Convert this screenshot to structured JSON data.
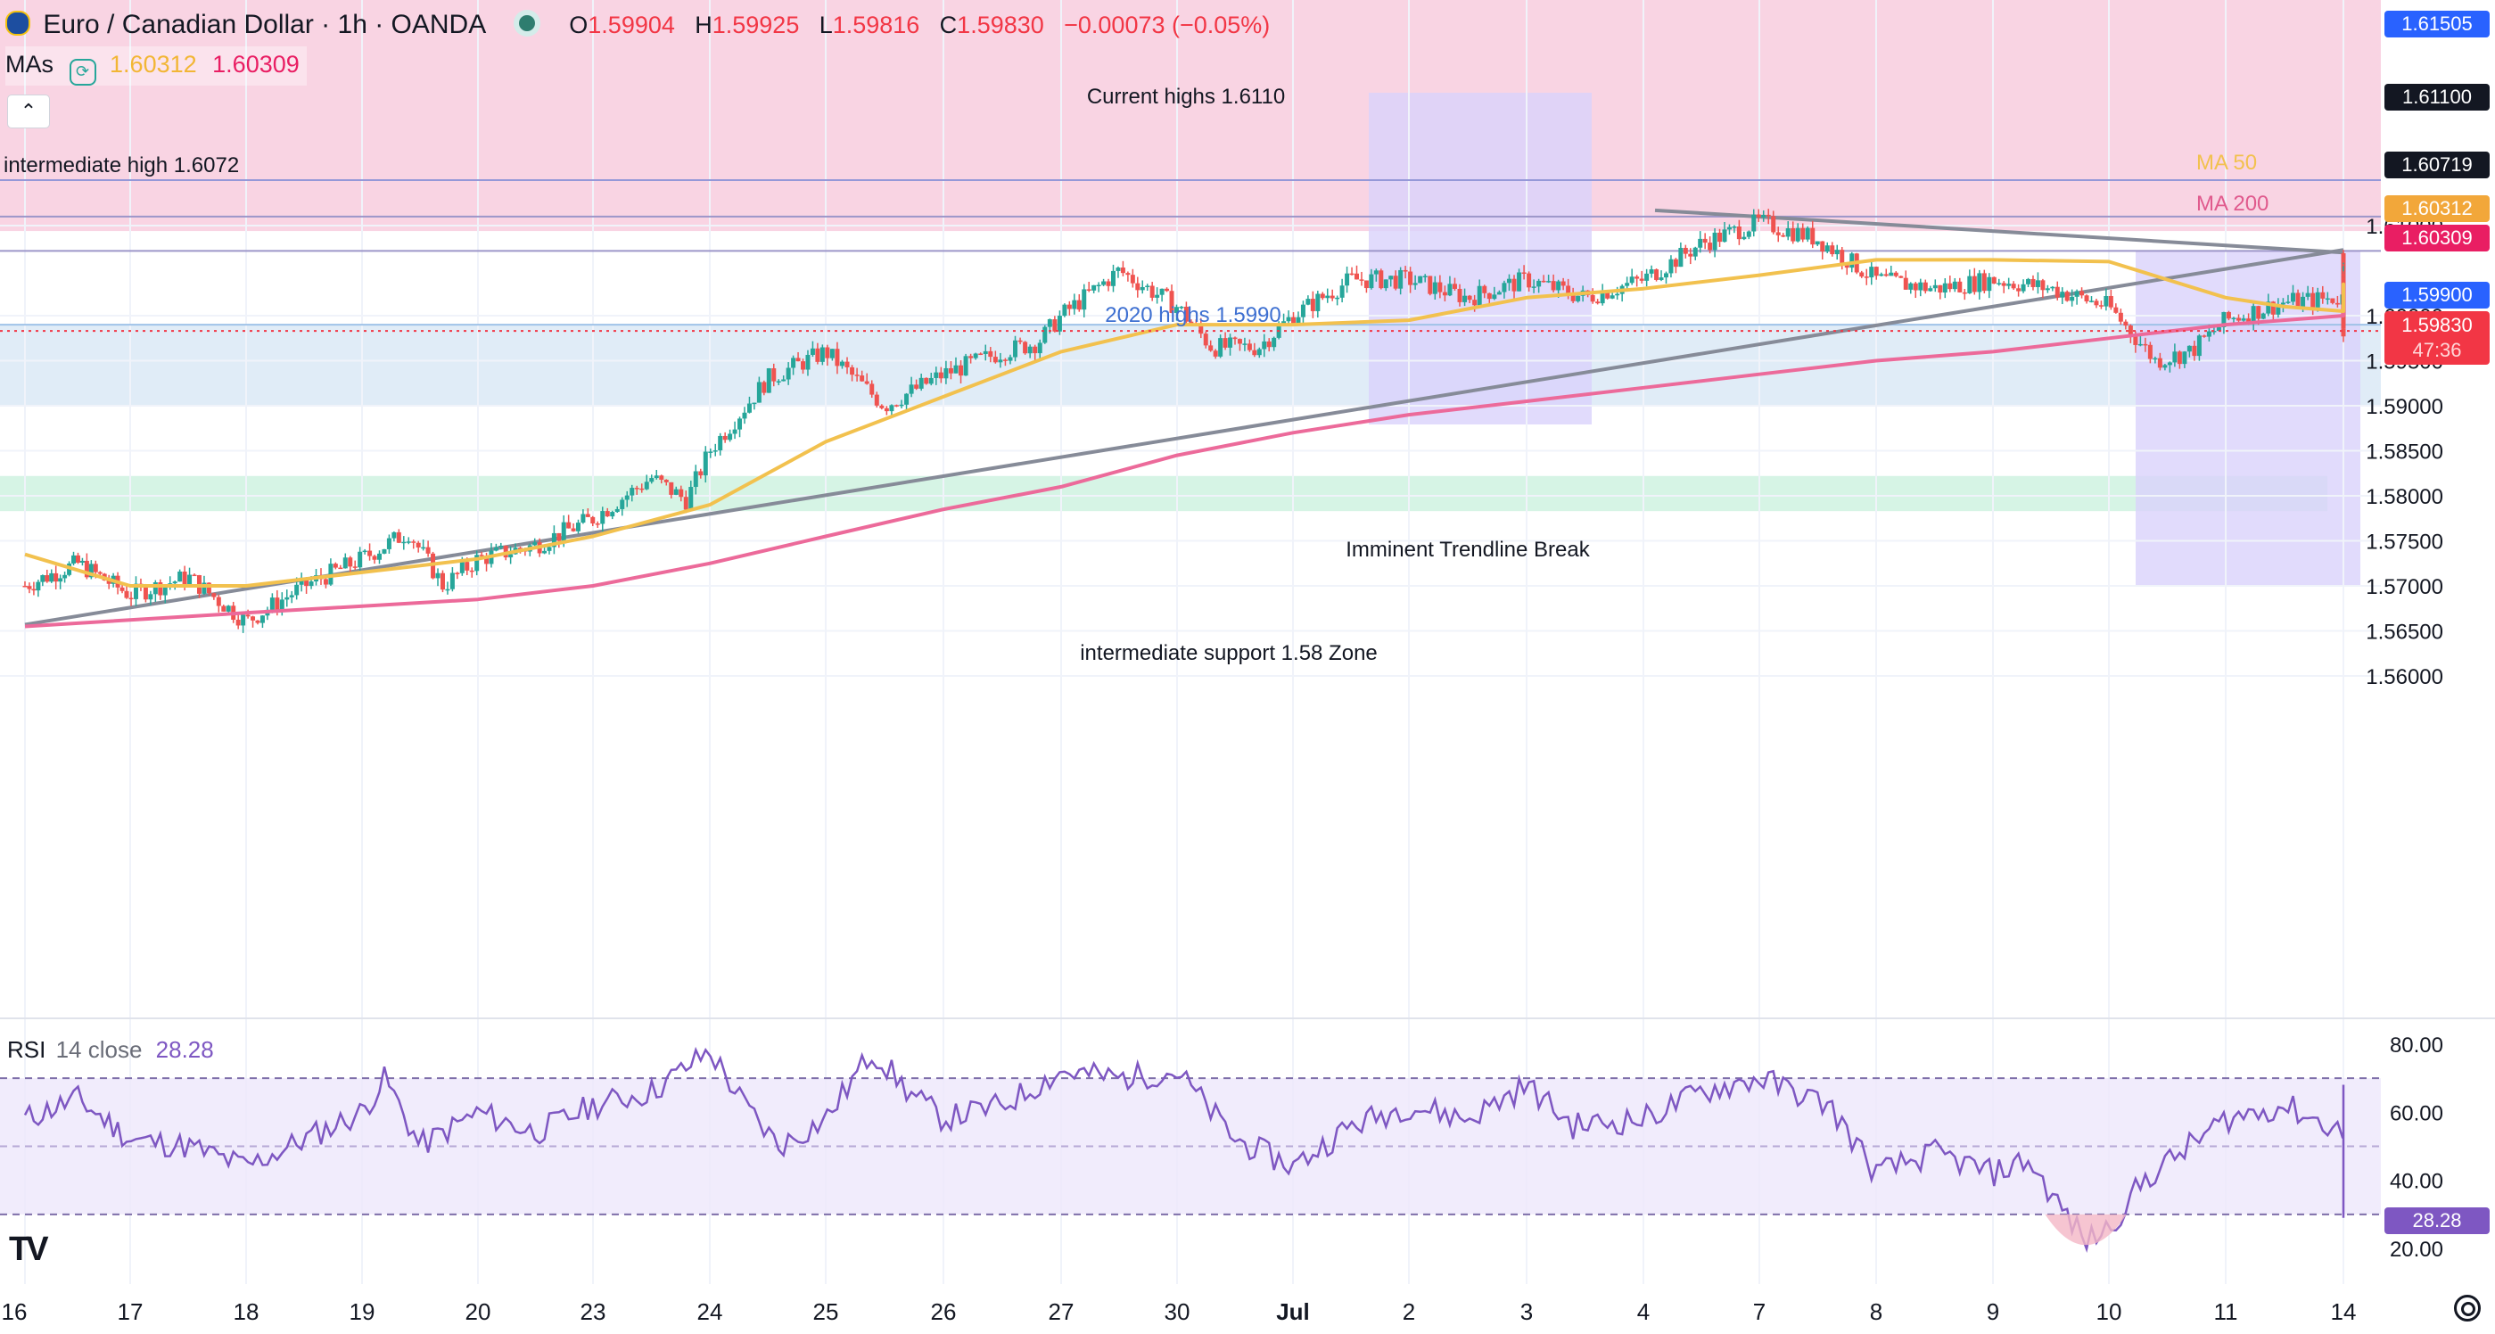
{
  "header": {
    "symbol": "Euro / Canadian Dollar · 1h · OANDA",
    "open_label": "O",
    "open": "1.59904",
    "high_label": "H",
    "high": "1.59925",
    "low_label": "L",
    "low": "1.59816",
    "close_label": "C",
    "close": "1.59830",
    "change": "−0.00073 (−0.05%)",
    "indicator_label": "MAs",
    "ma50_value": "1.60312",
    "ma200_value": "1.60309",
    "collapse_icon": "chevron-up-icon"
  },
  "annotations": {
    "current_highs": "Current highs 1.6110",
    "intermediate_high": "intermediate high 1.6072",
    "highs_2020": "2020 highs 1.5990",
    "trendline_break": "Imminent Trendline Break",
    "support_zone": "intermediate support 1.58 Zone",
    "ma50_label": "MA 50",
    "ma200_label": "MA 200"
  },
  "price_badges": {
    "b1": "1.61505",
    "b2": "1.61100",
    "b3": "1.60719",
    "b4": "1.60312",
    "b5": "1.60309",
    "b6": "1.59900",
    "b7": "1.59830",
    "countdown": "47:36"
  },
  "rsi": {
    "label": "RSI",
    "params": "14 close",
    "value": "28.28"
  },
  "colors": {
    "up": "#26a69a",
    "down": "#ef5350",
    "ma50": "#f2c14e",
    "ma200": "#ec6a9a",
    "rsi": "#7e57c2",
    "trendline": "#868b98",
    "resistance_zone": "#f7c6d9",
    "demand_zone": "#cfe2f3",
    "support_zone": "#c8f0dc",
    "projection": "#d9d2fb"
  },
  "brand": "TV",
  "chart_data": {
    "type": "candlestick",
    "title": "Euro / Canadian Dollar · 1h · OANDA",
    "x_ticks": [
      "16",
      "17",
      "18",
      "19",
      "20",
      "23",
      "24",
      "25",
      "26",
      "27",
      "30",
      "Jul",
      "2",
      "3",
      "4",
      "7",
      "8",
      "9",
      "10",
      "11",
      "14"
    ],
    "y_ticks": [
      1.6,
      1.595,
      1.59,
      1.585,
      1.58,
      1.575,
      1.57,
      1.565,
      1.56,
      1.61
    ],
    "y_tick_labels": [
      "1.60000",
      "1.59500",
      "1.59000",
      "1.58500",
      "1.58000",
      "1.57500",
      "1.57000",
      "1.56500",
      "1.56000",
      "1.61000"
    ],
    "ylim": [
      1.5598,
      1.615
    ],
    "last_close": 1.5983,
    "price_path": [
      [
        0,
        1.57
      ],
      [
        0.5,
        1.5725
      ],
      [
        1,
        1.569
      ],
      [
        1.5,
        1.571
      ],
      [
        2,
        1.566
      ],
      [
        2.5,
        1.57
      ],
      [
        3,
        1.573
      ],
      [
        3.4,
        1.576
      ],
      [
        3.7,
        1.57
      ],
      [
        4,
        1.573
      ],
      [
        4.5,
        1.5745
      ],
      [
        5,
        1.5775
      ],
      [
        5.5,
        1.582
      ],
      [
        5.8,
        1.5795
      ],
      [
        6,
        1.585
      ],
      [
        6.5,
        1.593
      ],
      [
        7,
        1.596
      ],
      [
        7.5,
        1.59
      ],
      [
        8,
        1.5935
      ],
      [
        8.5,
        1.596
      ],
      [
        8.8,
        1.597
      ],
      [
        9,
        1.6
      ],
      [
        9.5,
        1.605
      ],
      [
        10,
        1.601
      ],
      [
        10.3,
        1.5965
      ],
      [
        10.7,
        1.5965
      ],
      [
        11,
        1.6
      ],
      [
        11.5,
        1.604
      ],
      [
        12,
        1.604
      ],
      [
        12.5,
        1.602
      ],
      [
        13,
        1.604
      ],
      [
        13.5,
        1.602
      ],
      [
        14,
        1.604
      ],
      [
        14.5,
        1.608
      ],
      [
        15,
        1.6104
      ],
      [
        15.5,
        1.6085
      ],
      [
        16,
        1.604
      ],
      [
        16.5,
        1.603
      ],
      [
        17,
        1.604
      ],
      [
        17.5,
        1.603
      ],
      [
        18,
        1.601
      ],
      [
        18.4,
        1.595
      ],
      [
        18.7,
        1.596
      ],
      [
        19,
        1.5995
      ],
      [
        19.5,
        1.6015
      ],
      [
        20,
        1.602
      ],
      [
        20.3,
        1.603
      ],
      [
        20.7,
        1.5992
      ],
      [
        21,
        1.601
      ],
      [
        21.5,
        1.604
      ],
      [
        22,
        1.604
      ],
      [
        22.5,
        1.601
      ],
      [
        23,
        1.603
      ],
      [
        23.5,
        1.6035
      ],
      [
        24,
        1.604
      ],
      [
        24.5,
        1.605
      ],
      [
        24.8,
        1.6065
      ],
      [
        25,
        1.6045
      ],
      [
        25.3,
        1.604
      ],
      [
        25.5,
        1.602
      ],
      [
        25.7,
        1.6
      ],
      [
        25.8,
        1.5983
      ]
    ],
    "ma50": [
      [
        0,
        1.5735
      ],
      [
        1,
        1.57
      ],
      [
        2,
        1.57
      ],
      [
        3,
        1.5715
      ],
      [
        4,
        1.573
      ],
      [
        5,
        1.5755
      ],
      [
        6,
        1.579
      ],
      [
        7,
        1.586
      ],
      [
        8,
        1.591
      ],
      [
        9,
        1.596
      ],
      [
        10,
        1.599
      ],
      [
        11,
        1.599
      ],
      [
        12,
        1.5995
      ],
      [
        13,
        1.602
      ],
      [
        14,
        1.603
      ],
      [
        15,
        1.6045
      ],
      [
        16,
        1.6062
      ],
      [
        17,
        1.6062
      ],
      [
        18,
        1.606
      ],
      [
        18.5,
        1.604
      ],
      [
        19,
        1.602
      ],
      [
        19.5,
        1.601
      ],
      [
        20,
        1.6005
      ],
      [
        21,
        1.601
      ],
      [
        22,
        1.6025
      ],
      [
        23,
        1.603
      ],
      [
        24,
        1.603
      ],
      [
        24.5,
        1.6034
      ],
      [
        25,
        1.6035
      ],
      [
        25.8,
        1.60312
      ]
    ],
    "ma200": [
      [
        0,
        1.5655
      ],
      [
        2,
        1.567
      ],
      [
        4,
        1.5685
      ],
      [
        5,
        1.57
      ],
      [
        6,
        1.5725
      ],
      [
        7,
        1.5755
      ],
      [
        8,
        1.5785
      ],
      [
        9,
        1.581
      ],
      [
        10,
        1.5845
      ],
      [
        11,
        1.587
      ],
      [
        12,
        1.589
      ],
      [
        13,
        1.5905
      ],
      [
        14,
        1.592
      ],
      [
        15,
        1.5935
      ],
      [
        16,
        1.595
      ],
      [
        17,
        1.596
      ],
      [
        18,
        1.5975
      ],
      [
        19,
        1.599
      ],
      [
        20,
        1.6
      ],
      [
        21,
        1.601
      ],
      [
        22,
        1.6015
      ],
      [
        23,
        1.602
      ],
      [
        24,
        1.6025
      ],
      [
        25,
        1.603
      ],
      [
        25.8,
        1.60309
      ]
    ],
    "rsi": {
      "ylim": [
        15,
        85
      ],
      "y_ticks": [
        80,
        60,
        40,
        20
      ],
      "y_tick_labels": [
        "80.00",
        "60.00",
        "40.00",
        "20.00"
      ],
      "bands": [
        70,
        50,
        30
      ],
      "values": [
        [
          0,
          58
        ],
        [
          0.5,
          64
        ],
        [
          1,
          52
        ],
        [
          1.5,
          50
        ],
        [
          2,
          44
        ],
        [
          2.5,
          52
        ],
        [
          3,
          60
        ],
        [
          3.2,
          70
        ],
        [
          3.5,
          50
        ],
        [
          4,
          60
        ],
        [
          4.5,
          54
        ],
        [
          5,
          62
        ],
        [
          5.5,
          66
        ],
        [
          6,
          78
        ],
        [
          6.3,
          62
        ],
        [
          6.6,
          50
        ],
        [
          7,
          58
        ],
        [
          7.4,
          78
        ],
        [
          7.7,
          66
        ],
        [
          8,
          58
        ],
        [
          8.5,
          62
        ],
        [
          9,
          72
        ],
        [
          9.5,
          70
        ],
        [
          10,
          72
        ],
        [
          10.5,
          52
        ],
        [
          11,
          44
        ],
        [
          11.5,
          56
        ],
        [
          12,
          62
        ],
        [
          12.5,
          58
        ],
        [
          13,
          68
        ],
        [
          13.4,
          56
        ],
        [
          14,
          58
        ],
        [
          14.5,
          66
        ],
        [
          15,
          70
        ],
        [
          15.3,
          66
        ],
        [
          15.6,
          62
        ],
        [
          16,
          42
        ],
        [
          16.5,
          48
        ],
        [
          17,
          42
        ],
        [
          17.3,
          46
        ],
        [
          17.5,
          36
        ],
        [
          17.8,
          22
        ],
        [
          18,
          26
        ],
        [
          18.3,
          40
        ],
        [
          19,
          58
        ],
        [
          19.5,
          62
        ],
        [
          20,
          54
        ],
        [
          20.3,
          46
        ],
        [
          20.7,
          60
        ],
        [
          21,
          62
        ],
        [
          21.5,
          54
        ],
        [
          22,
          58
        ],
        [
          22.5,
          48
        ],
        [
          23,
          56
        ],
        [
          23.5,
          60
        ],
        [
          24,
          52
        ],
        [
          24.5,
          62
        ],
        [
          24.8,
          66
        ],
        [
          25,
          58
        ],
        [
          25.3,
          50
        ],
        [
          25.6,
          40
        ],
        [
          25.8,
          28.28
        ]
      ]
    },
    "trendlines": [
      {
        "from": [
          0,
          1.5657
        ],
        "to": [
          24.6,
          1.6073
        ]
      },
      {
        "from": [
          14.1,
          1.6117
        ],
        "to": [
          26.3,
          1.607
        ]
      }
    ],
    "zones": [
      {
        "name": "resistance",
        "y": [
          1.6094,
          1.615
        ]
      },
      {
        "name": "demand",
        "y": [
          1.59,
          1.599
        ]
      },
      {
        "name": "intermediate support",
        "y": [
          1.5783,
          1.5822
        ]
      }
    ],
    "horizontal_lines": [
      1.61505,
      1.611,
      1.60719
    ],
    "grid": true
  }
}
